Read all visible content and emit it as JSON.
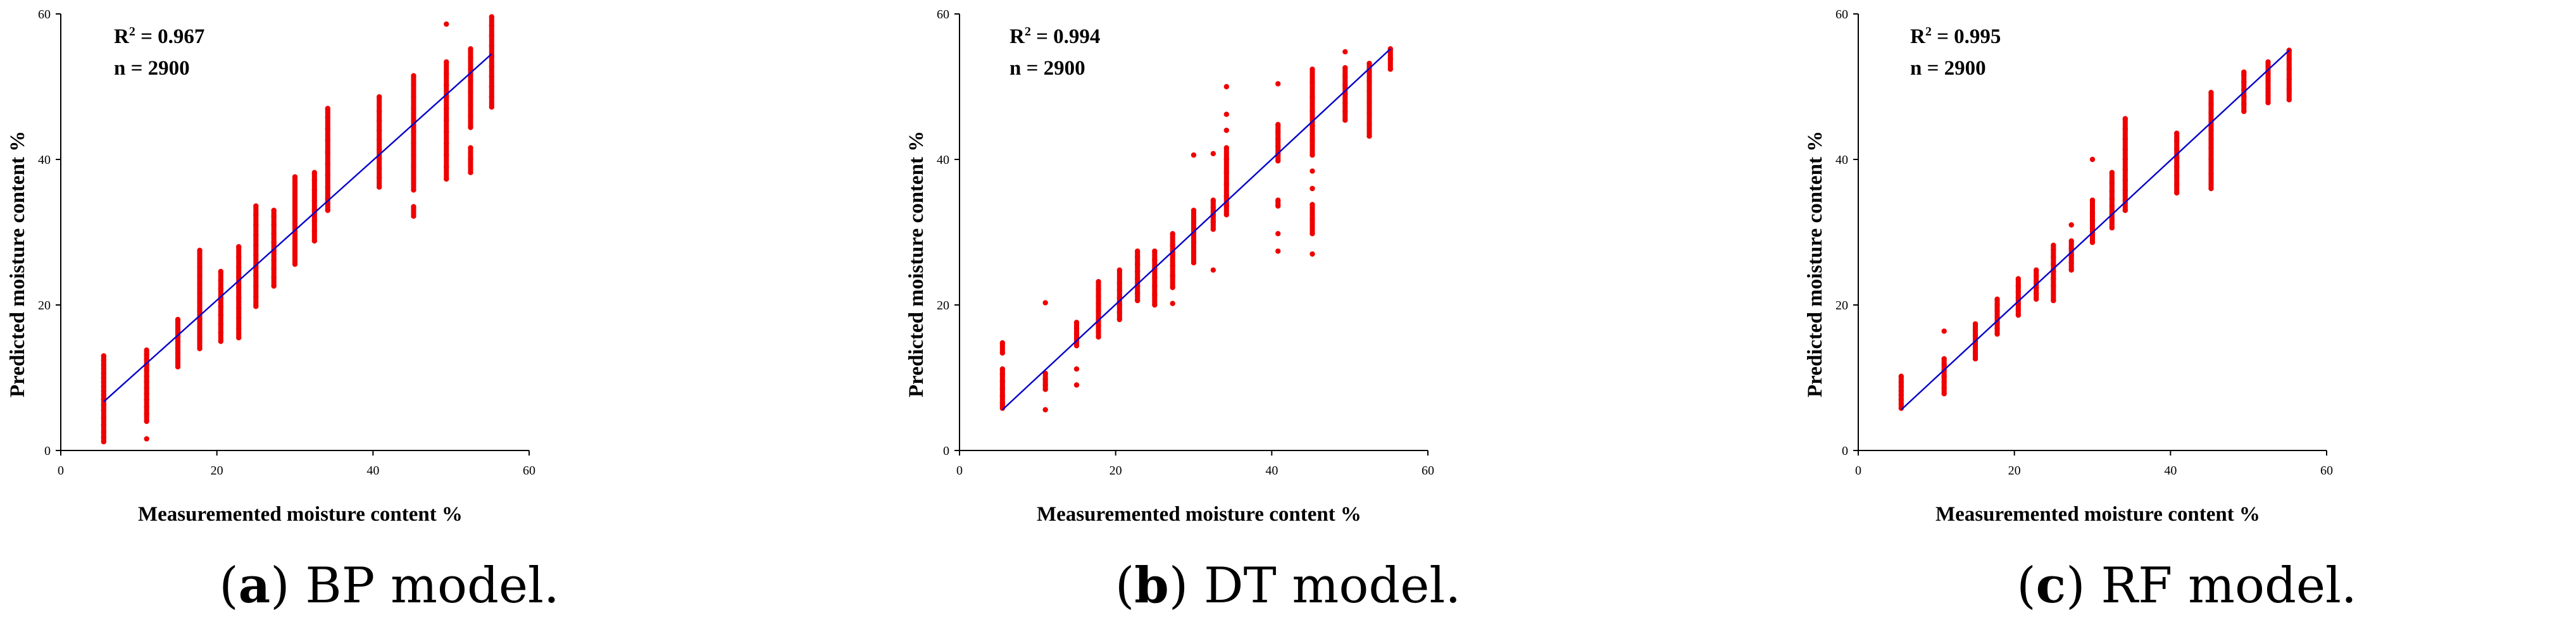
{
  "chart_data": [
    {
      "type": "scatter",
      "panel_label": "a",
      "caption": "BP model.",
      "xlabel": "Measuremented moisture content %",
      "ylabel": "Predicted moisture content %",
      "xlim": [
        0,
        60
      ],
      "ylim": [
        0,
        60
      ],
      "xticks": [
        "0",
        "20",
        "40",
        "60"
      ],
      "yticks": [
        "0",
        "20",
        "40",
        "60"
      ],
      "r2_label": "R",
      "r2_value": "= 0.967",
      "n_text": "n = 2900",
      "fit_line": {
        "x": [
          5.5,
          55.2
        ],
        "y": [
          6.7,
          54.5
        ],
        "color": "#0000cc"
      },
      "point_color": "#ee0000",
      "clusters": [
        {
          "x": 5.5,
          "y": [
            1.2,
            1.8,
            2.5,
            3.5,
            4.5,
            5.5,
            6.3,
            7.0,
            7.6,
            8.2,
            8.8,
            9.4,
            10.0,
            10.6,
            11.2,
            11.8,
            12.4,
            13.0
          ]
        },
        {
          "x": 11.0,
          "y": [
            1.6,
            4.0,
            5.0,
            6.0,
            7.0,
            7.8,
            8.6,
            9.4,
            10.2,
            11.0,
            11.8,
            12.5,
            13.2,
            13.8
          ]
        },
        {
          "x": 15.0,
          "y": [
            11.5,
            12.5,
            13.4,
            14.2,
            15.0,
            15.8,
            16.6,
            17.4,
            18.0
          ]
        },
        {
          "x": 17.8,
          "y": [
            14.0,
            15.5,
            16.8,
            18.0,
            19.2,
            20.4,
            21.6,
            22.8,
            24.0,
            25.2,
            26.4,
            27.5
          ]
        },
        {
          "x": 20.5,
          "y": [
            15.0,
            16.2,
            17.4,
            18.6,
            19.8,
            21.0,
            22.2,
            23.4,
            24.6
          ]
        },
        {
          "x": 22.8,
          "y": [
            15.5,
            16.8,
            18.2,
            19.6,
            21.0,
            22.4,
            23.8,
            25.2,
            26.6,
            28.0
          ]
        },
        {
          "x": 25.0,
          "y": [
            19.8,
            21.2,
            22.6,
            24.0,
            25.4,
            26.8,
            28.2,
            29.6,
            31.0,
            32.4,
            33.6
          ]
        },
        {
          "x": 27.3,
          "y": [
            22.6,
            23.8,
            25.0,
            26.2,
            27.4,
            28.6,
            29.8,
            31.0,
            32.2,
            33.0
          ]
        },
        {
          "x": 30.0,
          "y": [
            25.6,
            27.0,
            28.4,
            29.8,
            31.2,
            32.6,
            34.0,
            35.4,
            36.6,
            37.6
          ]
        },
        {
          "x": 32.5,
          "y": [
            28.8,
            30.2,
            31.6,
            33.0,
            34.4,
            35.8,
            37.2,
            38.2
          ]
        },
        {
          "x": 34.2,
          "y": [
            33.0,
            34.6,
            36.2,
            37.8,
            39.4,
            41.0,
            42.6,
            44.2,
            45.8,
            47.0
          ]
        },
        {
          "x": 40.8,
          "y": [
            36.2,
            37.5,
            38.8,
            40.1,
            41.4,
            42.7,
            44.0,
            45.3,
            46.6,
            48.6
          ]
        },
        {
          "x": 45.2,
          "y": [
            32.2,
            33.5,
            35.8,
            37.4,
            39.0,
            40.6,
            42.2,
            43.8,
            45.4,
            47.0,
            48.6,
            50.2,
            51.5
          ]
        },
        {
          "x": 49.4,
          "y": [
            37.3,
            39.0,
            40.6,
            42.2,
            43.8,
            45.4,
            47.0,
            48.6,
            50.2,
            51.8,
            53.4,
            58.6
          ]
        },
        {
          "x": 52.5,
          "y": [
            38.2,
            40.0,
            41.6,
            44.4,
            46.0,
            47.6,
            49.2,
            50.8,
            52.4,
            54.0,
            55.2
          ]
        },
        {
          "x": 55.2,
          "y": [
            47.2,
            48.6,
            50.0,
            51.4,
            52.8,
            54.2,
            55.6,
            57.0,
            58.4,
            59.6
          ]
        }
      ]
    },
    {
      "type": "scatter",
      "panel_label": "b",
      "caption": "DT model.",
      "xlabel": "Measuremented moisture content %",
      "ylabel": "Predicted moisture content %",
      "xlim": [
        0,
        60
      ],
      "ylim": [
        0,
        60
      ],
      "xticks": [
        "0",
        "20",
        "40",
        "60"
      ],
      "yticks": [
        "0",
        "20",
        "40",
        "60"
      ],
      "r2_label": "R",
      "r2_value": "= 0.994",
      "n_text": "n = 2900",
      "fit_line": {
        "x": [
          5.5,
          55.2
        ],
        "y": [
          5.6,
          55.2
        ],
        "color": "#0000cc"
      },
      "point_color": "#ee0000",
      "clusters": [
        {
          "x": 5.5,
          "y": [
            5.8,
            6.5,
            7.5,
            8.5,
            9.5,
            10.5,
            11.2,
            13.4,
            14.8
          ]
        },
        {
          "x": 11.0,
          "y": [
            5.6,
            8.4,
            9.0,
            9.8,
            10.6,
            20.3
          ]
        },
        {
          "x": 15.0,
          "y": [
            9.0,
            11.2,
            14.4,
            15.2,
            16.0,
            16.8,
            17.6
          ]
        },
        {
          "x": 17.8,
          "y": [
            15.6,
            16.4,
            17.2,
            18.2,
            19.2,
            20.2,
            21.2,
            22.2,
            23.2
          ]
        },
        {
          "x": 20.5,
          "y": [
            18.0,
            19.0,
            20.0,
            21.0,
            22.0,
            23.0,
            24.8
          ]
        },
        {
          "x": 22.8,
          "y": [
            20.6,
            21.6,
            22.6,
            23.6,
            24.6,
            25.6,
            26.6,
            27.4
          ]
        },
        {
          "x": 25.0,
          "y": [
            20.0,
            21.4,
            22.6,
            23.8,
            25.0,
            26.2,
            27.4
          ]
        },
        {
          "x": 27.3,
          "y": [
            20.2,
            22.4,
            24.0,
            25.4,
            26.8,
            28.2,
            29.8
          ]
        },
        {
          "x": 30.0,
          "y": [
            25.8,
            27.2,
            28.6,
            30.0,
            31.4,
            33.0,
            40.6
          ]
        },
        {
          "x": 32.5,
          "y": [
            24.8,
            30.4,
            31.4,
            32.4,
            33.4,
            34.4,
            40.8
          ]
        },
        {
          "x": 34.2,
          "y": [
            32.4,
            33.6,
            35.0,
            36.6,
            38.2,
            40.0,
            41.6,
            44.0,
            46.2,
            50.0
          ]
        },
        {
          "x": 40.8,
          "y": [
            27.4,
            29.8,
            33.6,
            34.4,
            39.8,
            40.8,
            41.8,
            42.8,
            43.8,
            44.8,
            50.4
          ]
        },
        {
          "x": 45.2,
          "y": [
            27.0,
            29.8,
            31.8,
            33.8,
            36.0,
            38.4,
            40.6,
            42.6,
            44.6,
            46.6,
            48.6,
            50.6,
            52.4
          ]
        },
        {
          "x": 49.4,
          "y": [
            45.4,
            46.6,
            47.8,
            49.0,
            50.2,
            51.4,
            52.6,
            54.8
          ]
        },
        {
          "x": 52.5,
          "y": [
            43.2,
            44.8,
            46.4,
            47.8,
            49.4,
            50.8,
            52.0,
            53.2
          ]
        },
        {
          "x": 55.2,
          "y": [
            52.4,
            53.8,
            55.2
          ]
        }
      ]
    },
    {
      "type": "scatter",
      "panel_label": "c",
      "caption": "RF model.",
      "xlabel": "Measuremented moisture content %",
      "ylabel": "Predicted moisture content %",
      "xlim": [
        0,
        60
      ],
      "ylim": [
        0,
        60
      ],
      "xticks": [
        "0",
        "20",
        "40",
        "60"
      ],
      "yticks": [
        "0",
        "20",
        "40",
        "60"
      ],
      "r2_label": "R",
      "r2_value": "= 0.995",
      "n_text": "n = 2900",
      "fit_line": {
        "x": [
          5.5,
          55.2
        ],
        "y": [
          5.6,
          55.0
        ],
        "color": "#0000cc"
      },
      "point_color": "#ee0000",
      "clusters": [
        {
          "x": 5.5,
          "y": [
            5.8,
            6.4,
            7.0,
            7.6,
            8.2,
            8.8,
            9.4,
            10.2
          ]
        },
        {
          "x": 11.0,
          "y": [
            7.8,
            8.6,
            9.4,
            10.2,
            11.0,
            11.8,
            12.6,
            16.4
          ]
        },
        {
          "x": 15.0,
          "y": [
            12.6,
            13.4,
            14.2,
            15.0,
            15.8,
            16.6,
            17.4
          ]
        },
        {
          "x": 17.8,
          "y": [
            16.0,
            16.8,
            17.6,
            18.4,
            19.2,
            20.0,
            20.8
          ]
        },
        {
          "x": 20.5,
          "y": [
            18.6,
            19.4,
            20.2,
            21.0,
            21.8,
            22.6,
            23.6
          ]
        },
        {
          "x": 22.8,
          "y": [
            20.8,
            21.6,
            22.4,
            23.2,
            24.0,
            24.8
          ]
        },
        {
          "x": 25.0,
          "y": [
            20.6,
            22.6,
            23.6,
            24.6,
            25.6,
            26.6,
            27.6,
            28.2
          ]
        },
        {
          "x": 27.3,
          "y": [
            24.8,
            25.8,
            26.8,
            27.8,
            28.8,
            31.0
          ]
        },
        {
          "x": 30.0,
          "y": [
            28.6,
            29.6,
            30.6,
            31.6,
            32.6,
            34.4,
            40.0
          ]
        },
        {
          "x": 32.5,
          "y": [
            30.6,
            31.6,
            32.6,
            33.6,
            34.6,
            35.6,
            36.8,
            38.2
          ]
        },
        {
          "x": 34.2,
          "y": [
            33.0,
            34.4,
            35.8,
            37.2,
            38.6,
            40.0,
            41.4,
            42.8,
            44.2,
            45.6
          ]
        },
        {
          "x": 40.8,
          "y": [
            35.4,
            36.6,
            37.8,
            39.0,
            40.2,
            41.4,
            42.6,
            43.6
          ]
        },
        {
          "x": 45.2,
          "y": [
            36.0,
            38.0,
            40.0,
            41.6,
            42.8,
            44.0,
            45.2,
            46.4,
            47.6,
            49.2
          ]
        },
        {
          "x": 49.4,
          "y": [
            46.6,
            47.6,
            48.6,
            49.6,
            50.6,
            51.6,
            52.0
          ]
        },
        {
          "x": 52.5,
          "y": [
            47.8,
            48.8,
            49.8,
            50.8,
            51.8,
            52.8,
            53.4
          ]
        },
        {
          "x": 55.2,
          "y": [
            48.2,
            49.6,
            51.0,
            52.4,
            53.8,
            55.0
          ]
        }
      ]
    }
  ]
}
